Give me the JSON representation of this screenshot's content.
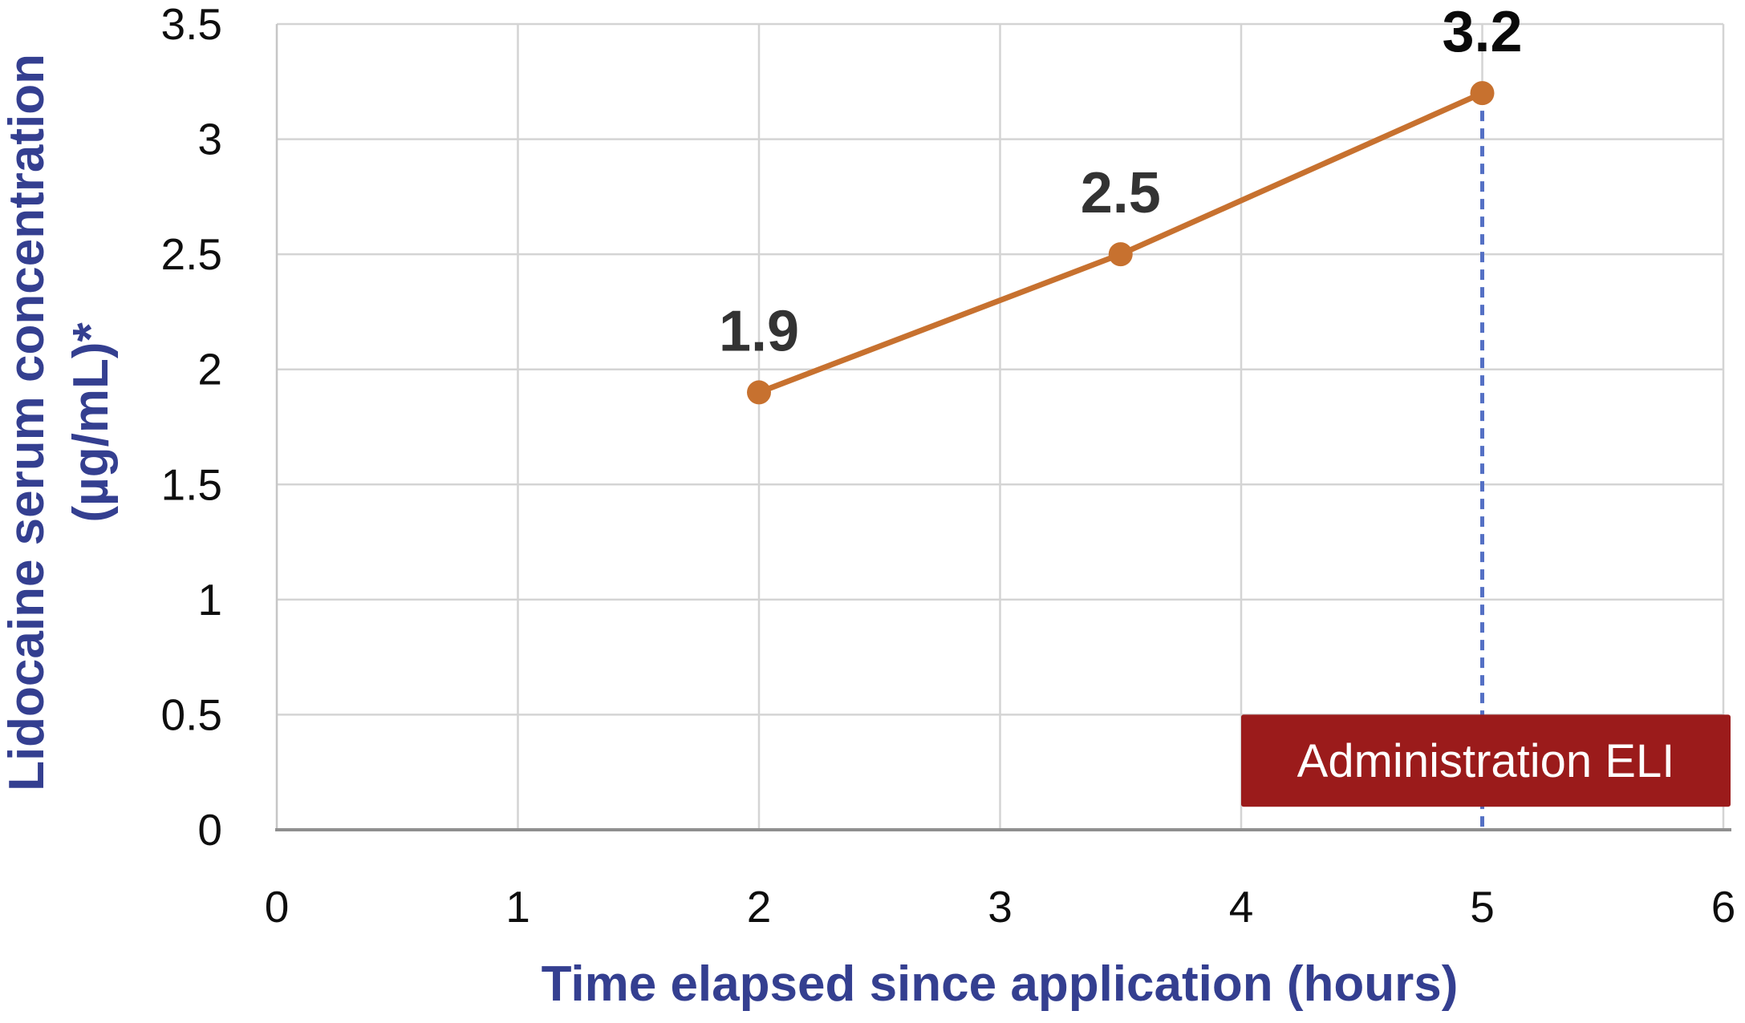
{
  "figure": {
    "y_axis_title_line1": "Lidocaine serum concentration",
    "y_axis_title_line2": "(µg/mL)*",
    "x_axis_title": "Time elapsed since application (hours)"
  },
  "colors": {
    "axis_title_blue": "#343F90",
    "tick_label": "#0e0e0e",
    "data_label": "#333333",
    "data_label_final": "#0a0a0a",
    "series_orange": "#C7712F",
    "vline_blue": "#5470C4",
    "annotation_red": "#9B1B1B",
    "annotation_text": "#ffffff",
    "gridline": "#D4D4D4",
    "plot_border": "#C6C6C6",
    "axis_line": "#8F8F8F"
  },
  "chart_data": {
    "type": "line",
    "title": "",
    "xlabel": "Time elapsed since application (hours)",
    "ylabel": "Lidocaine serum concentration (µg/mL)*",
    "x": [
      2,
      3.5,
      5
    ],
    "y": [
      1.9,
      2.5,
      3.2
    ],
    "data_labels": [
      {
        "text": "1.9",
        "emphasized": false
      },
      {
        "text": "2.5",
        "emphasized": false
      },
      {
        "text": "3.2",
        "emphasized": true
      }
    ],
    "xlim": [
      0,
      6
    ],
    "ylim": [
      0,
      3.5
    ],
    "x_ticks": [
      0,
      1,
      2,
      3,
      4,
      5,
      6
    ],
    "x_tick_labels": [
      "0",
      "1",
      "2",
      "3",
      "4",
      "5",
      "6"
    ],
    "y_ticks": [
      0,
      0.5,
      1,
      1.5,
      2,
      2.5,
      3,
      3.5
    ],
    "y_tick_labels": [
      "0",
      "0.5",
      "1",
      "1.5",
      "2",
      "2.5",
      "3",
      "3.5"
    ],
    "grid": true,
    "legend": "none",
    "annotations": {
      "vline": {
        "x": 5,
        "style": "dashed",
        "from_y": 3.2,
        "to_y": 0
      },
      "box": {
        "label": "Administration ELI",
        "x0": 4.0,
        "x1": 6.03,
        "y0": 0.1,
        "y1": 0.5
      }
    }
  }
}
